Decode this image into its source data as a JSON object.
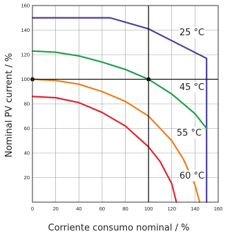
{
  "chart_data": {
    "type": "line",
    "title": "",
    "xlabel": "Corriente consumo nominal / %",
    "ylabel": "Nominal PV current / %",
    "xlim": [
      0,
      160
    ],
    "ylim": [
      0,
      160
    ],
    "xticks": [
      "0",
      "20",
      "40",
      "60",
      "80",
      "100",
      "120",
      "140",
      "160"
    ],
    "yticks": [
      "20",
      "40",
      "60",
      "80",
      "100",
      "120",
      "140",
      "160"
    ],
    "grid": true,
    "reference_lines": {
      "x": 100,
      "y": 100
    },
    "reference_points": [
      {
        "x": 0,
        "y": 100
      },
      {
        "x": 100,
        "y": 100
      }
    ],
    "series": [
      {
        "name": "25 °C",
        "color": "#4a3f9e",
        "x": [
          0,
          67,
          100,
          150,
          150
        ],
        "y": [
          150,
          150,
          141,
          117,
          0
        ]
      },
      {
        "name": "45 °C",
        "color": "#1ea046",
        "x": [
          0,
          20,
          40,
          60,
          80,
          100,
          120,
          140,
          150
        ],
        "y": [
          123,
          122,
          119,
          114,
          108,
          100,
          88,
          72,
          60
        ]
      },
      {
        "name": "55 °C",
        "color": "#f07c1a",
        "x": [
          0,
          20,
          40,
          60,
          80,
          100,
          120,
          130,
          140,
          144
        ],
        "y": [
          100,
          99,
          96,
          90,
          82,
          70,
          50,
          35,
          14,
          0
        ]
      },
      {
        "name": "60 °C",
        "color": "#e0262e",
        "x": [
          0,
          20,
          40,
          60,
          80,
          100,
          110,
          120,
          124
        ],
        "y": [
          86,
          85,
          81,
          73,
          62,
          45,
          33,
          15,
          0
        ]
      }
    ]
  }
}
